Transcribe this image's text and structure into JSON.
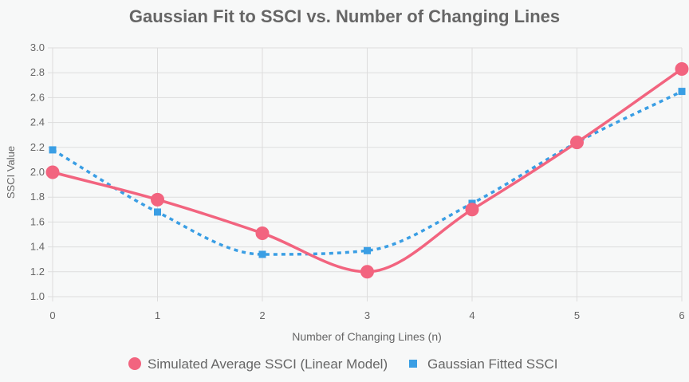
{
  "colors": {
    "background": "#f7f8f8",
    "title": "#666666",
    "axis_text": "#666666",
    "grid": "#dddddd",
    "series_simulated": "#f2647f",
    "series_gaussian": "#3a9ee4"
  },
  "chart_data": {
    "type": "line",
    "title": "Gaussian Fit to SSCI vs. Number of Changing Lines",
    "xlabel": "Number of Changing Lines (n)",
    "ylabel": "SSCI Value",
    "xlim": [
      0,
      6
    ],
    "ylim": [
      1.0,
      3.0
    ],
    "x_ticks": [
      "0",
      "1",
      "2",
      "3",
      "4",
      "5",
      "6"
    ],
    "y_ticks": [
      "1.0",
      "1.2",
      "1.4",
      "1.6",
      "1.8",
      "2.0",
      "2.2",
      "2.4",
      "2.6",
      "2.8",
      "3.0"
    ],
    "grid": true,
    "legend_position": "bottom",
    "x": [
      0,
      1,
      2,
      3,
      4,
      5,
      6
    ],
    "series": [
      {
        "name": "Simulated Average SSCI (Linear Model)",
        "values": [
          2.0,
          1.78,
          1.51,
          1.2,
          1.7,
          2.24,
          2.83
        ],
        "color": "#f2647f",
        "marker": "circle",
        "line_style": "solid"
      },
      {
        "name": "Gaussian Fitted SSCI",
        "values": [
          2.18,
          1.68,
          1.34,
          1.37,
          1.75,
          2.24,
          2.65
        ],
        "color": "#3a9ee4",
        "marker": "square",
        "line_style": "dotted"
      }
    ]
  }
}
